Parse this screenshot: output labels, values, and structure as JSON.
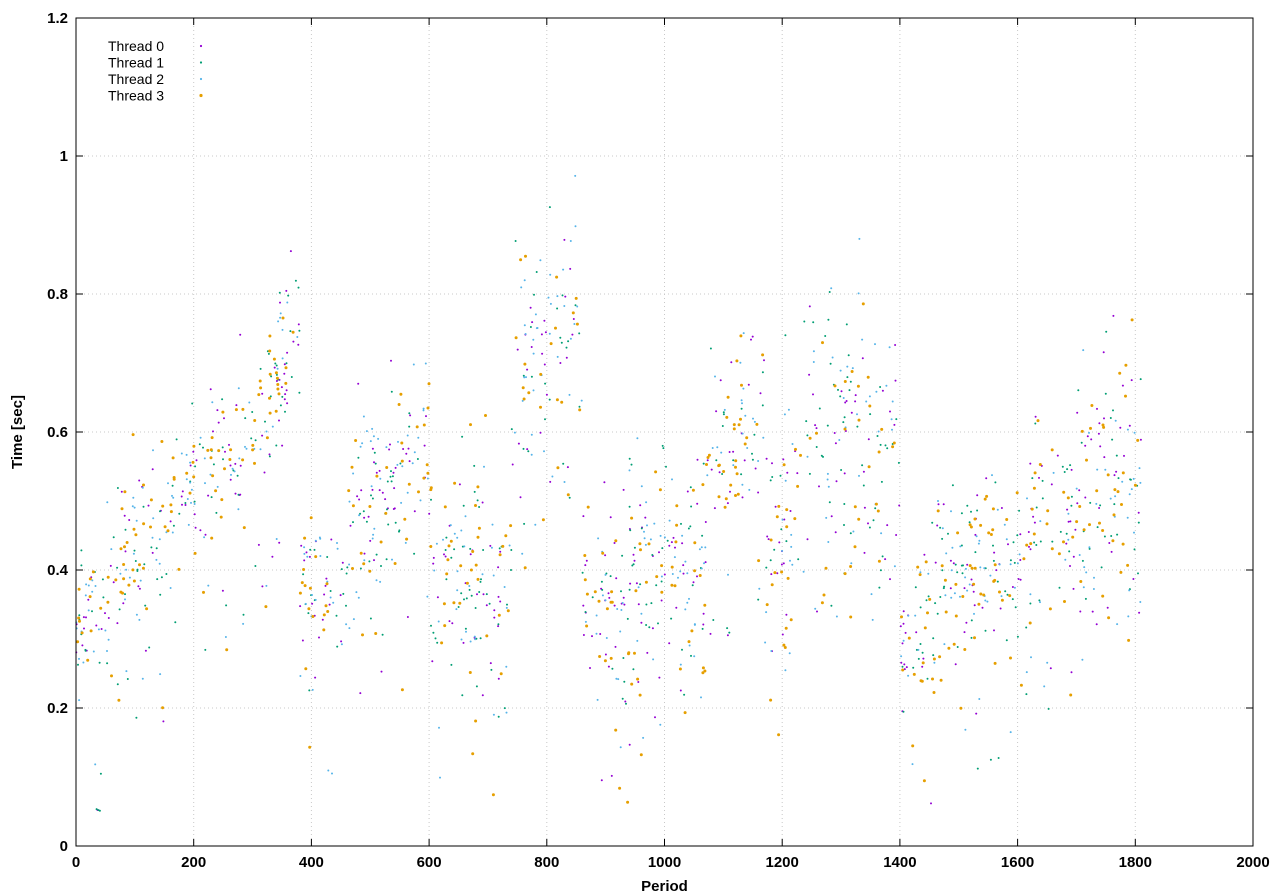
{
  "chart_data": {
    "type": "scatter",
    "title": "",
    "xlabel": "Period",
    "ylabel": "Time [sec]",
    "xlim": [
      0,
      2000
    ],
    "ylim": [
      0,
      1.2
    ],
    "x_ticks": [
      0,
      200,
      400,
      600,
      800,
      1000,
      1200,
      1400,
      1600,
      1800,
      2000
    ],
    "y_ticks": [
      0,
      0.2,
      0.4,
      0.6,
      0.8,
      1,
      1.2
    ],
    "x_tick_labels": [
      "0",
      "200",
      "400",
      "600",
      "800",
      "1000",
      "1200",
      "1400",
      "1600",
      "1800",
      "2000"
    ],
    "y_tick_labels": [
      "0",
      "0.2",
      "0.4",
      "0.6",
      "0.8",
      "1",
      "1.2"
    ],
    "grid": true,
    "legend_position": "top-left",
    "series": [
      {
        "name": "Thread 0",
        "color": "#9400d3"
      },
      {
        "name": "Thread 1",
        "color": "#009e73"
      },
      {
        "name": "Thread 2",
        "color": "#56b4e9"
      },
      {
        "name": "Thread 3",
        "color": "#e69f00"
      }
    ],
    "segments": [
      {
        "x": [
          0,
          60
        ],
        "y": [
          0.32,
          0.36
        ],
        "spread": 0.05
      },
      {
        "x": [
          60,
          180
        ],
        "y": [
          0.4,
          0.5
        ],
        "spread": 0.06
      },
      {
        "x": [
          180,
          300
        ],
        "y": [
          0.52,
          0.58
        ],
        "spread": 0.06
      },
      {
        "x": [
          300,
          380
        ],
        "y": [
          0.6,
          0.76
        ],
        "spread": 0.06
      },
      {
        "x": [
          380,
          460
        ],
        "y": [
          0.4,
          0.36
        ],
        "spread": 0.05
      },
      {
        "x": [
          460,
          600
        ],
        "y": [
          0.45,
          0.56
        ],
        "spread": 0.07
      },
      {
        "x": [
          600,
          740
        ],
        "y": [
          0.4,
          0.36
        ],
        "spread": 0.08
      },
      {
        "x": [
          740,
          860
        ],
        "y": [
          0.68,
          0.76
        ],
        "spread": 0.1
      },
      {
        "x": [
          860,
          940
        ],
        "y": [
          0.38,
          0.34
        ],
        "spread": 0.07
      },
      {
        "x": [
          940,
          1070
        ],
        "y": [
          0.42,
          0.38
        ],
        "spread": 0.08
      },
      {
        "x": [
          1070,
          1170
        ],
        "y": [
          0.55,
          0.62
        ],
        "spread": 0.06
      },
      {
        "x": [
          1170,
          1220
        ],
        "y": [
          0.45,
          0.45
        ],
        "spread": 0.1
      },
      {
        "x": [
          1220,
          1400
        ],
        "y": [
          0.6,
          0.58
        ],
        "spread": 0.1
      },
      {
        "x": [
          1400,
          1460
        ],
        "y": [
          0.32,
          0.3
        ],
        "spread": 0.07
      },
      {
        "x": [
          1460,
          1620
        ],
        "y": [
          0.38,
          0.42
        ],
        "spread": 0.06
      },
      {
        "x": [
          1620,
          1810
        ],
        "y": [
          0.45,
          0.55
        ],
        "spread": 0.09
      }
    ],
    "points_per_series": 460
  }
}
